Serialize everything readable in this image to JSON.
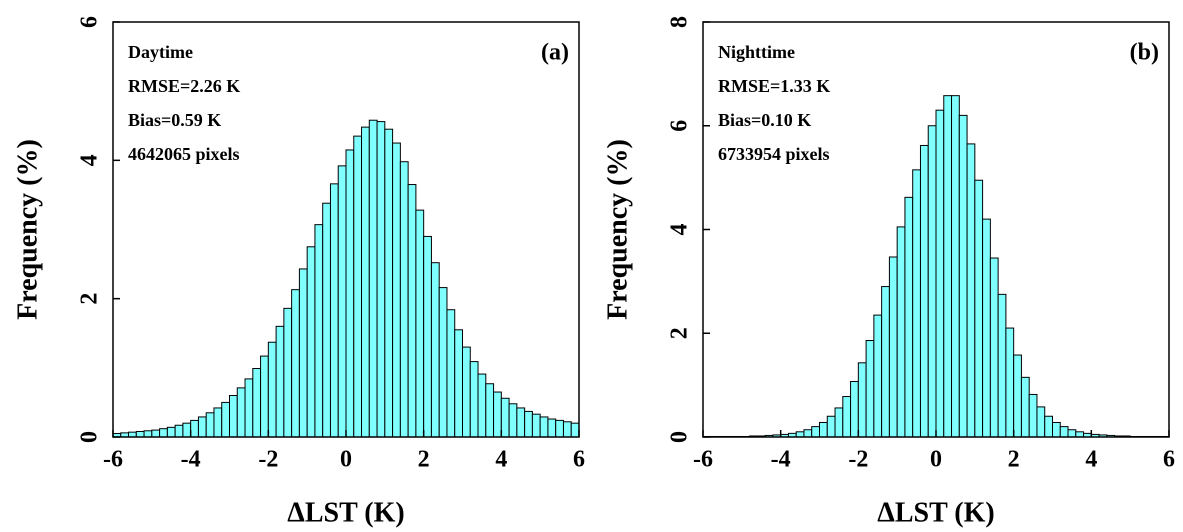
{
  "chart_data": [
    {
      "type": "histogram",
      "ylabel": "Frequency (%)",
      "xlabel": "ΔLST (K)",
      "panel_label": "(a)",
      "annotations": [
        "Daytime",
        "RMSE=2.26 K",
        "Bias=0.59 K",
        "4642065 pixels"
      ],
      "color": "#80ffff",
      "bins": [
        -6,
        -5.8,
        -5.6,
        -5.4,
        -5.2,
        -5,
        -4.8,
        -4.6,
        -4.4,
        -4.2,
        -4,
        -3.8,
        -3.6,
        -3.4,
        -3.2,
        -3,
        -2.8,
        -2.6,
        -2.4,
        -2.2,
        -2,
        -1.8,
        -1.6,
        -1.4,
        -1.2,
        -1,
        -0.8,
        -0.6,
        -0.4,
        -0.2,
        0,
        0.2,
        0.4,
        0.6,
        0.8,
        1,
        1.2,
        1.4,
        1.6,
        1.8,
        2,
        2.2,
        2.4,
        2.6,
        2.8,
        3,
        3.2,
        3.4,
        3.6,
        3.8,
        4,
        4.2,
        4.4,
        4.6,
        4.8,
        5,
        5.2,
        5.4,
        5.6,
        5.8,
        6
      ],
      "values": [
        0.05,
        0.06,
        0.07,
        0.08,
        0.09,
        0.1,
        0.12,
        0.14,
        0.17,
        0.2,
        0.24,
        0.29,
        0.35,
        0.42,
        0.5,
        0.6,
        0.71,
        0.84,
        0.99,
        1.17,
        1.37,
        1.6,
        1.86,
        2.13,
        2.43,
        2.75,
        3.07,
        3.38,
        3.66,
        3.92,
        4.15,
        4.35,
        4.48,
        4.58,
        4.56,
        4.45,
        4.25,
        3.98,
        3.65,
        3.28,
        2.9,
        2.52,
        2.16,
        1.84,
        1.55,
        1.3,
        1.09,
        0.91,
        0.77,
        0.65,
        0.56,
        0.48,
        0.42,
        0.37,
        0.33,
        0.29,
        0.26,
        0.24,
        0.22,
        0.2
      ],
      "xlim": [
        -6,
        6
      ],
      "xticks": [
        -6,
        -4,
        -2,
        0,
        2,
        4,
        6
      ],
      "ylim": [
        0,
        6
      ],
      "yticks": [
        0,
        2,
        4,
        6
      ]
    },
    {
      "type": "histogram",
      "ylabel": "Frequency (%)",
      "xlabel": "ΔLST (K)",
      "panel_label": "(b)",
      "annotations": [
        "Nighttime",
        "RMSE=1.33 K",
        "Bias=0.10 K",
        "6733954 pixels"
      ],
      "color": "#80ffff",
      "bins": [
        -6,
        -5.8,
        -5.6,
        -5.4,
        -5.2,
        -5,
        -4.8,
        -4.6,
        -4.4,
        -4.2,
        -4,
        -3.8,
        -3.6,
        -3.4,
        -3.2,
        -3,
        -2.8,
        -2.6,
        -2.4,
        -2.2,
        -2,
        -1.8,
        -1.6,
        -1.4,
        -1.2,
        -1,
        -0.8,
        -0.6,
        -0.4,
        -0.2,
        0,
        0.2,
        0.4,
        0.6,
        0.8,
        1,
        1.2,
        1.4,
        1.6,
        1.8,
        2,
        2.2,
        2.4,
        2.6,
        2.8,
        3,
        3.2,
        3.4,
        3.6,
        3.8,
        4,
        4.2,
        4.4,
        4.6,
        4.8,
        5,
        5.2,
        5.4,
        5.6,
        5.8,
        6
      ],
      "values": [
        0.01,
        0.01,
        0.01,
        0.01,
        0.01,
        0.01,
        0.02,
        0.02,
        0.03,
        0.04,
        0.05,
        0.07,
        0.1,
        0.14,
        0.2,
        0.28,
        0.4,
        0.56,
        0.78,
        1.07,
        1.43,
        1.86,
        2.35,
        2.9,
        3.47,
        4.05,
        4.62,
        5.15,
        5.62,
        6.0,
        6.3,
        6.58,
        6.58,
        6.2,
        5.65,
        4.95,
        4.2,
        3.45,
        2.75,
        2.1,
        1.58,
        1.15,
        0.82,
        0.58,
        0.4,
        0.28,
        0.2,
        0.14,
        0.1,
        0.07,
        0.05,
        0.04,
        0.03,
        0.02,
        0.02,
        0.01,
        0.01,
        0.01,
        0.01,
        0.01
      ],
      "xlim": [
        -6,
        6
      ],
      "xticks": [
        -6,
        -4,
        -2,
        0,
        2,
        4,
        6
      ],
      "ylim": [
        0,
        8
      ],
      "yticks": [
        0,
        2,
        4,
        6,
        8
      ]
    }
  ]
}
